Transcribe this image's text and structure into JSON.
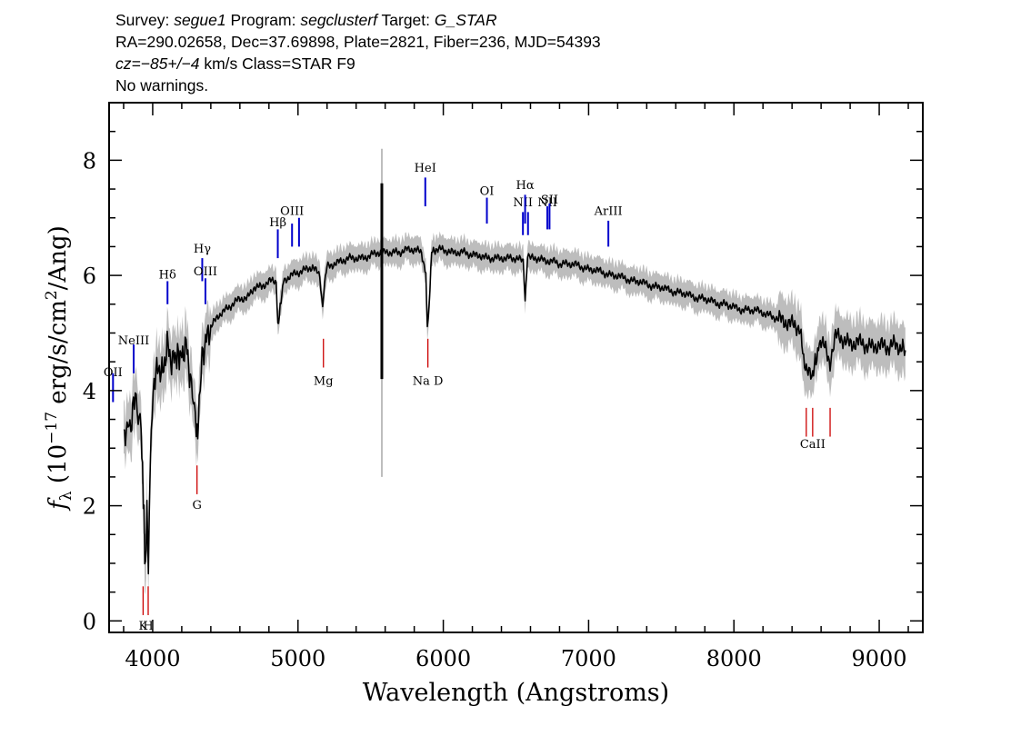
{
  "header": {
    "survey_label": "Survey:",
    "survey": "segue1",
    "program_label": "Program:",
    "program": "segclusterf",
    "target_label": "Target:",
    "target": "G_STAR",
    "line2": "RA=290.02658, Dec=37.69898, Plate=2821, Fiber=236, MJD=54393",
    "cz_label": "cz=",
    "cz_value": "−85+/−4",
    "cz_rest": "km/s Class=STAR F9",
    "line4": "No warnings."
  },
  "colors": {
    "flux": "#000000",
    "error_band": "#bdbdbd",
    "emission_line": "#0000cc",
    "absorption_line": "#cc0000"
  },
  "chart_data": {
    "type": "line",
    "xlabel": "Wavelength (Angstroms)",
    "ylabel_parts": [
      "f",
      "λ",
      " (10",
      "−17",
      " erg/s/cm",
      "2",
      "/Ang)"
    ],
    "xlim": [
      3700,
      9300
    ],
    "ylim": [
      -0.2,
      9.0
    ],
    "xticks": [
      4000,
      5000,
      6000,
      7000,
      8000,
      9000
    ],
    "yticks": [
      0,
      2,
      4,
      6,
      8
    ],
    "series": [
      {
        "x": [
          3800,
          3830,
          3850,
          3880,
          3900,
          3920,
          3935,
          3950,
          3960,
          3970,
          3990,
          4010,
          4040,
          4070,
          4100,
          4130,
          4160,
          4200,
          4230,
          4260,
          4280,
          4300,
          4310,
          4320,
          4340,
          4370,
          4400,
          4450,
          4500,
          4550,
          4600,
          4650,
          4700,
          4750,
          4800,
          4850,
          4861,
          4900,
          4950,
          5000,
          5050,
          5100,
          5150,
          5170,
          5183,
          5200,
          5250,
          5300,
          5350,
          5400,
          5450,
          5500,
          5550,
          5600,
          5650,
          5700,
          5750,
          5800,
          5850,
          5880,
          5890,
          5896,
          5920,
          5950,
          6000,
          6050,
          6100,
          6150,
          6200,
          6250,
          6300,
          6350,
          6400,
          6450,
          6500,
          6550,
          6563,
          6580,
          6600,
          6650,
          6700,
          6750,
          6800,
          6850,
          6900,
          6950,
          7000,
          7050,
          7100,
          7150,
          7200,
          7250,
          7300,
          7350,
          7400,
          7450,
          7500,
          7550,
          7600,
          7650,
          7700,
          7750,
          7800,
          7850,
          7900,
          7950,
          8000,
          8050,
          8100,
          8150,
          8200,
          8250,
          8300,
          8350,
          8400,
          8450,
          8498,
          8542,
          8600,
          8662,
          8700,
          8750,
          8800,
          8850,
          8900,
          8950,
          9000,
          9050,
          9100,
          9150,
          9180
        ],
        "y": [
          3.1,
          3.5,
          3.3,
          4.0,
          3.6,
          3.3,
          2.2,
          0.8,
          2.0,
          0.9,
          3.5,
          4.2,
          4.4,
          4.3,
          4.8,
          4.5,
          4.6,
          4.6,
          4.8,
          4.2,
          4.0,
          3.4,
          3.2,
          3.8,
          4.6,
          4.9,
          5.1,
          5.3,
          5.4,
          5.5,
          5.6,
          5.6,
          5.8,
          5.8,
          5.9,
          5.9,
          5.1,
          5.9,
          6.0,
          6.05,
          6.1,
          6.15,
          6.0,
          5.4,
          5.9,
          6.15,
          6.2,
          6.25,
          6.3,
          6.3,
          6.3,
          6.35,
          6.4,
          6.4,
          6.4,
          6.4,
          6.45,
          6.45,
          6.4,
          6.0,
          5.1,
          5.2,
          6.4,
          6.45,
          6.45,
          6.4,
          6.4,
          6.4,
          6.35,
          6.35,
          6.3,
          6.3,
          6.3,
          6.3,
          6.3,
          6.25,
          5.6,
          6.3,
          6.3,
          6.3,
          6.25,
          6.25,
          6.2,
          6.2,
          6.2,
          6.15,
          6.1,
          6.1,
          6.05,
          6.0,
          6.0,
          5.95,
          5.9,
          5.9,
          5.85,
          5.8,
          5.8,
          5.75,
          5.7,
          5.7,
          5.65,
          5.6,
          5.6,
          5.55,
          5.5,
          5.5,
          5.45,
          5.4,
          5.4,
          5.4,
          5.35,
          5.3,
          5.25,
          5.2,
          5.15,
          5.1,
          4.3,
          4.3,
          4.9,
          4.5,
          4.95,
          4.9,
          4.8,
          4.85,
          4.8,
          4.75,
          4.8,
          4.75,
          4.8,
          4.75,
          4.7
        ]
      }
    ],
    "spike": {
      "x": 5577,
      "ymin": 4.2,
      "ymax": 7.6
    },
    "lines": [
      {
        "label": "OII",
        "x": 3727,
        "kind": "emission",
        "y1": 3.8,
        "y2": 4.3,
        "label_y": 4.25
      },
      {
        "label": "NeIII",
        "x": 3869,
        "kind": "emission",
        "y1": 4.3,
        "y2": 4.8,
        "label_y": 4.8
      },
      {
        "label": "Hδ",
        "x": 4102,
        "kind": "emission",
        "y1": 5.5,
        "y2": 5.9,
        "label_y": 5.95
      },
      {
        "label": "Hγ",
        "x": 4341,
        "kind": "emission",
        "y1": 5.9,
        "y2": 6.3,
        "label_y": 6.4
      },
      {
        "label": "OIII",
        "x": 4363,
        "kind": "emission",
        "y1": 5.5,
        "y2": 5.95,
        "label_y": 6.0
      },
      {
        "label": "Hβ",
        "x": 4861,
        "kind": "emission",
        "y1": 6.3,
        "y2": 6.8,
        "label_y": 6.85
      },
      {
        "label": "OIII",
        "x": 4959,
        "kind": "emission",
        "y1": 6.5,
        "y2": 6.9,
        "label_y": 7.05
      },
      {
        "label": "",
        "x": 5007,
        "kind": "emission",
        "y1": 6.5,
        "y2": 7.0,
        "label_y": 0
      },
      {
        "label": "HeI",
        "x": 5876,
        "kind": "emission",
        "y1": 7.2,
        "y2": 7.7,
        "label_y": 7.8
      },
      {
        "label": "OI",
        "x": 6300,
        "kind": "emission",
        "y1": 6.9,
        "y2": 7.35,
        "label_y": 7.4
      },
      {
        "label": "NII",
        "x": 6548,
        "kind": "emission",
        "y1": 6.7,
        "y2": 7.1,
        "label_y": 7.2
      },
      {
        "label": "Hα",
        "x": 6563,
        "kind": "emission",
        "y1": 6.9,
        "y2": 7.4,
        "label_y": 7.5
      },
      {
        "label": "",
        "x": 6583,
        "kind": "emission",
        "y1": 6.7,
        "y2": 7.1,
        "label_y": 0
      },
      {
        "label": "NII",
        "x": 6716,
        "kind": "emission",
        "y1": 6.8,
        "y2": 7.2,
        "label_y": 7.2
      },
      {
        "label": "SII",
        "x": 6731,
        "kind": "emission",
        "y1": 6.8,
        "y2": 7.25,
        "label_y": 7.25
      },
      {
        "label": "ArIII",
        "x": 7136,
        "kind": "emission",
        "y1": 6.5,
        "y2": 6.95,
        "label_y": 7.05
      },
      {
        "label": "K",
        "x": 3934,
        "kind": "absorption",
        "y1": 0.1,
        "y2": 0.6,
        "label_y": -0.15
      },
      {
        "label": "H",
        "x": 3969,
        "kind": "absorption",
        "y1": 0.1,
        "y2": 0.6,
        "label_y": -0.15
      },
      {
        "label": "G",
        "x": 4305,
        "kind": "absorption",
        "y1": 2.2,
        "y2": 2.7,
        "label_y": 1.95
      },
      {
        "label": "Mg",
        "x": 5175,
        "kind": "absorption",
        "y1": 4.4,
        "y2": 4.9,
        "label_y": 4.1
      },
      {
        "label": "Na D",
        "x": 5894,
        "kind": "absorption",
        "y1": 4.4,
        "y2": 4.9,
        "label_y": 4.1
      },
      {
        "label": "",
        "x": 8498,
        "kind": "absorption",
        "y1": 3.2,
        "y2": 3.7,
        "label_y": 0
      },
      {
        "label": "CaII",
        "x": 8542,
        "kind": "absorption",
        "y1": 3.2,
        "y2": 3.7,
        "label_y": 3.0
      },
      {
        "label": "",
        "x": 8662,
        "kind": "absorption",
        "y1": 3.2,
        "y2": 3.7,
        "label_y": 0
      }
    ]
  }
}
